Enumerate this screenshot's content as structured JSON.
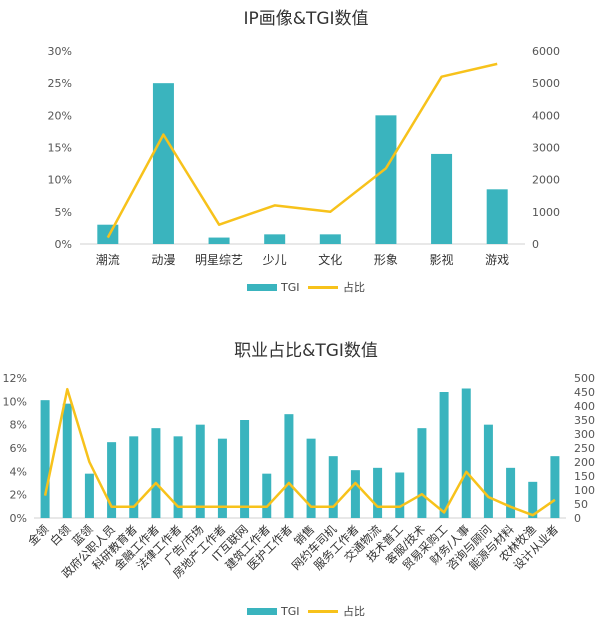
{
  "colors": {
    "bar": "#3ab4be",
    "line": "#f7c21b",
    "axis": "#d0d0d0"
  },
  "legend": {
    "bar_label": "TGI",
    "line_label": "占比"
  },
  "chart_data": [
    {
      "type": "bar",
      "title": "IP画像&TGI数值",
      "categories": [
        "潮流",
        "动漫",
        "明星综艺",
        "少儿",
        "文化",
        "形象",
        "影视",
        "游戏"
      ],
      "series": [
        {
          "name": "TGI",
          "type": "bar",
          "axis": "left",
          "values": [
            3,
            25,
            1,
            1.5,
            1.5,
            20,
            14,
            8.5
          ]
        },
        {
          "name": "占比",
          "type": "line",
          "axis": "right",
          "values": [
            200,
            3400,
            600,
            1200,
            1000,
            2350,
            5200,
            5600
          ]
        }
      ],
      "left_axis": {
        "min": 0,
        "max": 30,
        "ticks": [
          "0%",
          "5%",
          "10%",
          "15%",
          "20%",
          "25%",
          "30%"
        ]
      },
      "right_axis": {
        "min": 0,
        "max": 6000,
        "ticks": [
          "0",
          "1000",
          "2000",
          "3000",
          "4000",
          "5000",
          "6000"
        ]
      },
      "grid": false,
      "legend_position": "bottom"
    },
    {
      "type": "bar",
      "title": "职业占比&TGI数值",
      "categories": [
        "金领",
        "白领",
        "蓝领",
        "政府公职人员",
        "科研教育者",
        "金融工作者",
        "法律工作者",
        "广告/市场",
        "房地产工作者",
        "IT互联网",
        "建筑工作者",
        "医护工作者",
        "销售",
        "网约车司机",
        "服务工作者",
        "交通物流",
        "技术普工",
        "客服/技术",
        "贸易采购工",
        "财务/人事",
        "咨询与顾问",
        "能源与材料",
        "农林牧渔",
        "设计从业者"
      ],
      "series": [
        {
          "name": "TGI",
          "type": "bar",
          "axis": "left",
          "values": [
            10.1,
            9.8,
            3.8,
            6.5,
            7.0,
            7.7,
            7.0,
            8.0,
            6.8,
            8.4,
            3.8,
            8.9,
            6.8,
            5.3,
            4.1,
            4.3,
            3.9,
            7.7,
            10.8,
            11.1,
            8.0,
            4.3,
            3.1,
            5.3
          ]
        },
        {
          "name": "占比",
          "type": "line",
          "axis": "right",
          "values": [
            80,
            460,
            200,
            40,
            40,
            125,
            40,
            40,
            40,
            40,
            40,
            125,
            40,
            40,
            125,
            40,
            40,
            85,
            20,
            165,
            75,
            40,
            10,
            65
          ]
        }
      ],
      "left_axis": {
        "min": 0,
        "max": 12,
        "ticks": [
          "0%",
          "2%",
          "4%",
          "6%",
          "8%",
          "10%",
          "12%"
        ]
      },
      "right_axis": {
        "min": 0,
        "max": 500,
        "ticks": [
          "0",
          "50",
          "100",
          "150",
          "200",
          "250",
          "300",
          "350",
          "400",
          "450",
          "500"
        ]
      },
      "grid": false,
      "legend_position": "bottom"
    }
  ]
}
